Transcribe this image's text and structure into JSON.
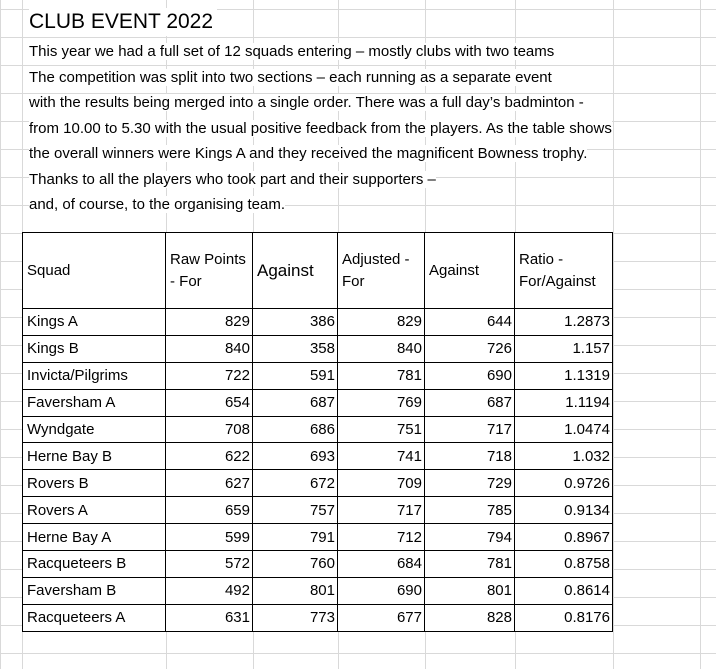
{
  "title": "CLUB EVENT 2022",
  "intro_lines": [
    "This year we had a full set of 12 squads entering – mostly clubs with two teams",
    "The competition was split into two sections – each running as a separate event",
    "with the results being merged into a single order. There was a full day’s badminton -",
    "from 10.00 to 5.30 with the usual positive feedback from the players. As the table shows",
    "the overall winners were Kings A and they received the magnificent Bowness trophy.",
    "Thanks to all the players who took part and their supporters –",
    "and, of course, to the organising team."
  ],
  "table": {
    "headers": [
      "Squad",
      "Raw Points - For",
      "Against",
      "Adjusted - For",
      "Against",
      "Ratio - For/Against"
    ],
    "rows": [
      [
        "Kings A",
        "829",
        "386",
        "829",
        "644",
        "1.2873"
      ],
      [
        "Kings B",
        "840",
        "358",
        "840",
        "726",
        "1.157"
      ],
      [
        "Invicta/Pilgrims",
        "722",
        "591",
        "781",
        "690",
        "1.1319"
      ],
      [
        "Faversham A",
        "654",
        "687",
        "769",
        "687",
        "1.1194"
      ],
      [
        "Wyndgate",
        "708",
        "686",
        "751",
        "717",
        "1.0474"
      ],
      [
        "Herne Bay B",
        "622",
        "693",
        "741",
        "718",
        "1.032"
      ],
      [
        "Rovers B",
        "627",
        "672",
        "709",
        "729",
        "0.9726"
      ],
      [
        "Rovers A",
        "659",
        "757",
        "717",
        "785",
        "0.9134"
      ],
      [
        "Herne Bay A",
        "599",
        "791",
        "712",
        "794",
        "0.8967"
      ],
      [
        "Racqueteers B",
        "572",
        "760",
        "684",
        "781",
        "0.8758"
      ],
      [
        "Faversham B",
        "492",
        "801",
        "690",
        "801",
        "0.8614"
      ],
      [
        "Racqueteers A",
        "631",
        "773",
        "677",
        "828",
        "0.8176"
      ]
    ]
  }
}
